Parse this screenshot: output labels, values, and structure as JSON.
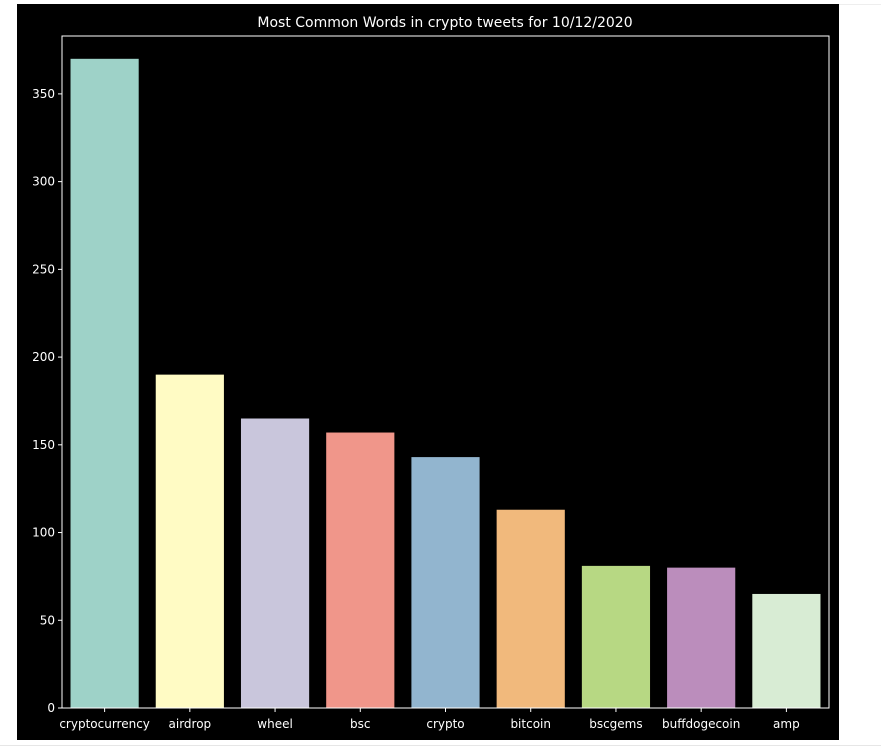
{
  "chart_data": {
    "type": "bar",
    "title": "Most Common Words in crypto tweets for 10/12/2020",
    "xlabel": "",
    "ylabel": "",
    "categories": [
      "cryptocurrency",
      "airdrop",
      "wheel",
      "bsc",
      "crypto",
      "bitcoin",
      "bscgems",
      "buffdogecoin",
      "amp"
    ],
    "values": [
      370,
      190,
      165,
      157,
      143,
      113,
      81,
      80,
      65
    ],
    "colors": [
      "#9ed2c8",
      "#fffbc4",
      "#c9c6dc",
      "#f0968a",
      "#92b5cf",
      "#f1b97c",
      "#b7d883",
      "#bb8dbc",
      "#d8ecd4"
    ],
    "ylim": [
      0,
      383
    ],
    "yticks": [
      0,
      50,
      100,
      150,
      200,
      250,
      300,
      350
    ],
    "grid": false,
    "background": "#000000",
    "axis_color": "#ffffff"
  }
}
